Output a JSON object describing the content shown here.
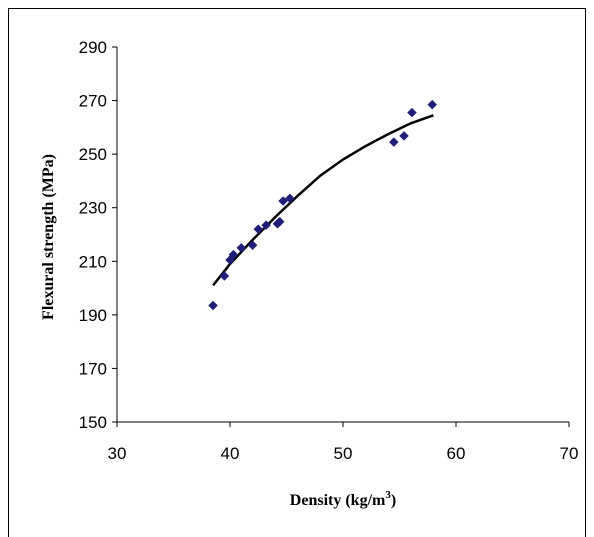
{
  "chart_data": {
    "type": "scatter",
    "title": "",
    "xlabel_main": "Density (kg/m",
    "xlabel_sup": "3",
    "xlabel_end": ")",
    "ylabel": "Flexural strength (MPa)",
    "xlim": [
      30,
      70
    ],
    "ylim": [
      150,
      290
    ],
    "x_ticks": [
      30,
      40,
      50,
      60,
      70
    ],
    "y_ticks": [
      150,
      170,
      190,
      210,
      230,
      250,
      270,
      290
    ],
    "grid": false,
    "marker_color": "#1f1f7a",
    "trend_color": "#000000",
    "series": [
      {
        "marker": "diamond",
        "points": [
          [
            38.5,
            193.5
          ],
          [
            39.5,
            204.5
          ],
          [
            40.0,
            210.5
          ],
          [
            40.3,
            212.5
          ],
          [
            41.0,
            215.0
          ],
          [
            42.0,
            216.0
          ],
          [
            42.5,
            222.0
          ],
          [
            43.2,
            223.5
          ],
          [
            44.2,
            224.0
          ],
          [
            44.4,
            224.8
          ],
          [
            44.7,
            232.5
          ],
          [
            45.3,
            233.5
          ],
          [
            54.5,
            254.5
          ],
          [
            55.4,
            256.8
          ],
          [
            56.1,
            265.5
          ],
          [
            57.9,
            268.5
          ]
        ]
      }
    ],
    "trendline": {
      "type": "logarithmic",
      "x_range": [
        38.5,
        58.0
      ],
      "points": [
        [
          38.5,
          201.0
        ],
        [
          40.0,
          209.0
        ],
        [
          42.0,
          218.0
        ],
        [
          44.0,
          226.5
        ],
        [
          46.0,
          234.5
        ],
        [
          48.0,
          242.0
        ],
        [
          50.0,
          248.0
        ],
        [
          52.0,
          253.0
        ],
        [
          54.0,
          257.5
        ],
        [
          56.0,
          261.5
        ],
        [
          58.0,
          264.5
        ]
      ]
    }
  }
}
